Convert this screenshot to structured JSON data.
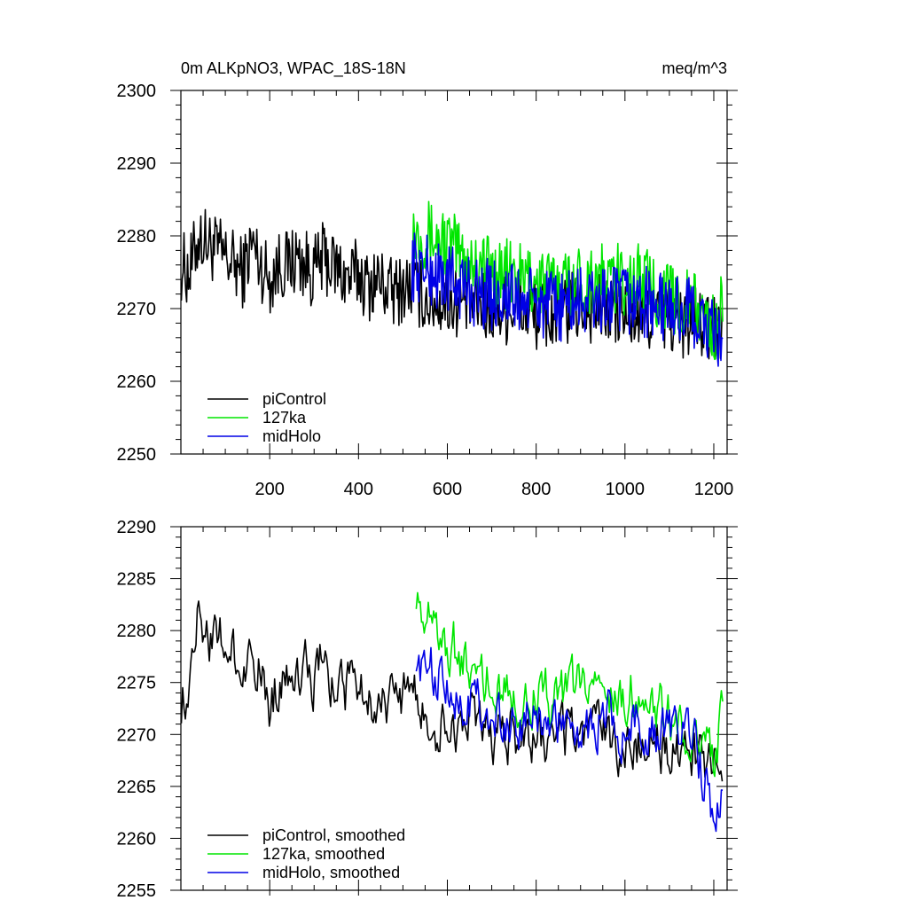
{
  "title_left": "0m ALKpNO3, WPAC_18S-18N",
  "title_right": "meq/m^3",
  "series_meta": [
    {
      "key": "piControl",
      "color": "#000000",
      "start": 1,
      "end": 520
    },
    {
      "key": "127ka",
      "color": "#00e600",
      "start": 520,
      "end": 1220
    },
    {
      "key": "midHolo",
      "color": "#0000e6",
      "start": 520,
      "end": 1220
    }
  ],
  "chart_data": [
    {
      "type": "line",
      "id": "raw",
      "title": "0m ALKpNO3, WPAC_18S-18N",
      "units": "meq/m^3",
      "xlim": [
        0,
        1230
      ],
      "ylim": [
        2250,
        2300
      ],
      "x_ticks": [
        200,
        400,
        600,
        800,
        1000,
        1200
      ],
      "x_tick_labels": [
        "200",
        "400",
        "600",
        "800",
        "1000",
        "1200"
      ],
      "y_ticks": [
        2250,
        2260,
        2270,
        2280,
        2290,
        2300
      ],
      "y_tick_labels": [
        "2250",
        "2260",
        "2270",
        "2280",
        "2290",
        "2300"
      ],
      "legend_position": "bottom-left",
      "legend": [
        "piControl",
        "127ka",
        "midHolo"
      ],
      "series": [
        {
          "name": "piControl",
          "x": [
            1,
            20,
            40,
            60,
            80,
            100,
            120,
            140,
            160,
            180,
            200,
            220,
            240,
            260,
            280,
            300,
            320,
            340,
            360,
            380,
            400,
            420,
            440,
            460,
            480,
            500,
            520,
            560,
            600,
            640,
            680,
            720,
            760,
            800,
            840,
            880,
            920,
            960,
            1000,
            1040,
            1080,
            1120,
            1160,
            1200,
            1220
          ],
          "values": [
            2276,
            2275,
            2280,
            2279,
            2278,
            2277,
            2276,
            2275,
            2279,
            2276,
            2274,
            2276,
            2276,
            2277,
            2276,
            2275,
            2277,
            2276,
            2275,
            2274,
            2275,
            2273,
            2274,
            2273,
            2272,
            2273,
            2273,
            2271,
            2271,
            2271,
            2270,
            2270,
            2270,
            2269,
            2269,
            2270,
            2270,
            2270,
            2269,
            2269,
            2269,
            2268,
            2268,
            2267,
            2267
          ],
          "amplitude": 5
        },
        {
          "name": "127ka",
          "x": [
            520,
            560,
            600,
            640,
            680,
            720,
            760,
            800,
            840,
            880,
            920,
            960,
            1000,
            1040,
            1080,
            1120,
            1160,
            1200,
            1220
          ],
          "values": [
            2281,
            2280,
            2279,
            2277,
            2276,
            2275,
            2274,
            2274,
            2273,
            2274,
            2274,
            2274,
            2274,
            2274,
            2272,
            2271,
            2270,
            2267,
            2270
          ],
          "amplitude": 5
        },
        {
          "name": "midHolo",
          "x": [
            520,
            560,
            600,
            640,
            680,
            720,
            760,
            800,
            840,
            880,
            920,
            960,
            1000,
            1040,
            1080,
            1120,
            1160,
            1200,
            1220
          ],
          "values": [
            2276,
            2275,
            2274,
            2273,
            2272,
            2272,
            2271,
            2271,
            2270,
            2271,
            2271,
            2271,
            2271,
            2271,
            2270,
            2270,
            2269,
            2266,
            2266
          ],
          "amplitude": 5
        }
      ]
    },
    {
      "type": "line",
      "id": "smooth",
      "xlim": [
        0,
        1230
      ],
      "ylim": [
        2255,
        2290
      ],
      "x_ticks": [
        200,
        400,
        600,
        800,
        1000,
        1200
      ],
      "y_ticks": [
        2255,
        2260,
        2265,
        2270,
        2275,
        2280,
        2285,
        2290
      ],
      "y_tick_labels": [
        "2255",
        "2260",
        "2265",
        "2270",
        "2275",
        "2280",
        "2285",
        "2290"
      ],
      "legend_position": "bottom-left",
      "legend": [
        "piControl, smoothed",
        "127ka, smoothed",
        "midHolo, smoothed"
      ],
      "series": [
        {
          "name": "piControl, smoothed",
          "x": [
            1,
            20,
            40,
            60,
            80,
            100,
            120,
            140,
            160,
            180,
            200,
            220,
            240,
            260,
            280,
            300,
            320,
            340,
            360,
            380,
            400,
            420,
            440,
            460,
            480,
            500,
            520,
            560,
            600,
            640,
            680,
            720,
            760,
            800,
            840,
            880,
            920,
            960,
            1000,
            1040,
            1080,
            1120,
            1160,
            1200,
            1220
          ],
          "values": [
            2273,
            2276,
            2283,
            2280,
            2278,
            2279,
            2277,
            2276,
            2279,
            2276,
            2273,
            2275,
            2277,
            2277,
            2276,
            2275,
            2277,
            2275,
            2275,
            2274,
            2276,
            2273,
            2274,
            2273,
            2273,
            2274,
            2274,
            2271,
            2271,
            2271,
            2270,
            2270,
            2270,
            2269,
            2269,
            2270,
            2270,
            2270,
            2269,
            2269,
            2269,
            2268,
            2268,
            2267,
            2267
          ],
          "amplitude": 2.5
        },
        {
          "name": "127ka, smoothed",
          "x": [
            530,
            560,
            600,
            640,
            680,
            720,
            760,
            800,
            840,
            880,
            920,
            960,
            1000,
            1040,
            1080,
            1120,
            1160,
            1200,
            1220
          ],
          "values": [
            2284,
            2281,
            2279,
            2277,
            2276,
            2275,
            2274,
            2274,
            2273,
            2274,
            2275,
            2274,
            2274,
            2274,
            2272,
            2271,
            2270,
            2268,
            2272
          ],
          "amplitude": 2.5
        },
        {
          "name": "midHolo, smoothed",
          "x": [
            530,
            560,
            600,
            640,
            680,
            720,
            760,
            800,
            840,
            880,
            920,
            960,
            1000,
            1040,
            1080,
            1120,
            1160,
            1200,
            1220
          ],
          "values": [
            2278,
            2276,
            2275,
            2274,
            2273,
            2272,
            2271,
            2271,
            2271,
            2271,
            2271,
            2272,
            2271,
            2271,
            2270,
            2270,
            2269,
            2262,
            2265
          ],
          "amplitude": 2.5
        }
      ]
    }
  ]
}
